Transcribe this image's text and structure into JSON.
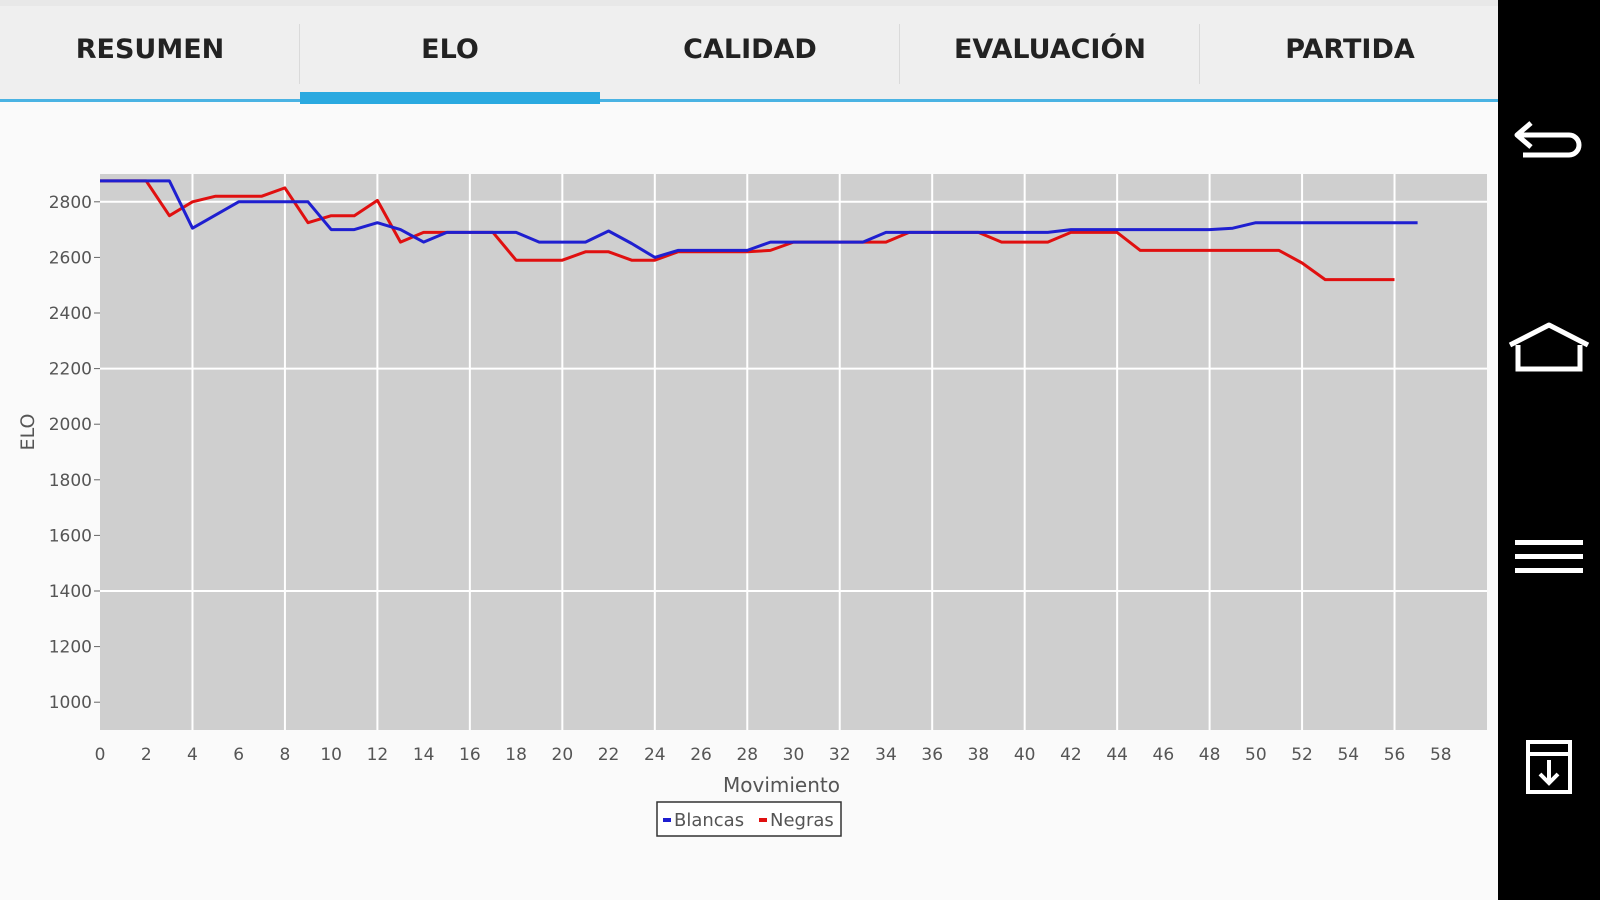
{
  "tabs": [
    {
      "label": "RESUMEN",
      "active": false
    },
    {
      "label": "ELO",
      "active": true
    },
    {
      "label": "CALIDAD",
      "active": false
    },
    {
      "label": "EVALUACIÓN",
      "active": false
    },
    {
      "label": "PARTIDA",
      "active": false
    }
  ],
  "navbar": {
    "icons": [
      "back-icon",
      "home-icon",
      "menu-icon",
      "download-icon"
    ]
  },
  "colors": {
    "accent": "#2aa9e0",
    "plot_bg": "#cfcfcf",
    "white_series": "#1f1fd0",
    "black_series": "#e01010"
  },
  "chart_data": {
    "type": "line",
    "xlabel": "Movimiento",
    "ylabel": "ELO",
    "xlim": [
      0,
      60
    ],
    "ylim": [
      900,
      2900
    ],
    "xticks": [
      0,
      2,
      4,
      6,
      8,
      10,
      12,
      14,
      16,
      18,
      20,
      22,
      24,
      26,
      28,
      30,
      32,
      34,
      36,
      38,
      40,
      42,
      44,
      46,
      48,
      50,
      52,
      54,
      56,
      58
    ],
    "yticks": [
      1000,
      1200,
      1400,
      1600,
      1800,
      2000,
      2200,
      2400,
      2600,
      2800
    ],
    "grid": true,
    "legend": "bottom-center",
    "series": [
      {
        "name": "Blancas",
        "color": "#1f1fd0",
        "points": [
          [
            0,
            2875
          ],
          [
            3,
            2875
          ],
          [
            4,
            2705
          ],
          [
            6,
            2800
          ],
          [
            9,
            2800
          ],
          [
            10,
            2700
          ],
          [
            11,
            2700
          ],
          [
            12,
            2725
          ],
          [
            13,
            2700
          ],
          [
            14,
            2655
          ],
          [
            15,
            2690
          ],
          [
            18,
            2690
          ],
          [
            19,
            2655
          ],
          [
            21,
            2655
          ],
          [
            22,
            2695
          ],
          [
            23,
            2650
          ],
          [
            24,
            2600
          ],
          [
            25,
            2625
          ],
          [
            28,
            2625
          ],
          [
            29,
            2655
          ],
          [
            33,
            2655
          ],
          [
            34,
            2690
          ],
          [
            36,
            2690
          ],
          [
            41,
            2690
          ],
          [
            42,
            2700
          ],
          [
            48,
            2700
          ],
          [
            49,
            2705
          ],
          [
            50,
            2725
          ],
          [
            57,
            2725
          ]
        ]
      },
      {
        "name": "Negras",
        "color": "#e01010",
        "points": [
          [
            0,
            2875
          ],
          [
            2,
            2875
          ],
          [
            3,
            2750
          ],
          [
            4,
            2800
          ],
          [
            5,
            2820
          ],
          [
            7,
            2820
          ],
          [
            8,
            2850
          ],
          [
            9,
            2725
          ],
          [
            10,
            2750
          ],
          [
            11,
            2750
          ],
          [
            12,
            2805
          ],
          [
            13,
            2655
          ],
          [
            14,
            2690
          ],
          [
            17,
            2690
          ],
          [
            18,
            2590
          ],
          [
            20,
            2590
          ],
          [
            21,
            2620
          ],
          [
            22,
            2620
          ],
          [
            23,
            2590
          ],
          [
            24,
            2590
          ],
          [
            25,
            2620
          ],
          [
            28,
            2620
          ],
          [
            29,
            2625
          ],
          [
            30,
            2655
          ],
          [
            32,
            2655
          ],
          [
            33,
            2655
          ],
          [
            34,
            2655
          ],
          [
            35,
            2690
          ],
          [
            38,
            2690
          ],
          [
            39,
            2655
          ],
          [
            41,
            2655
          ],
          [
            42,
            2690
          ],
          [
            44,
            2690
          ],
          [
            45,
            2625
          ],
          [
            51,
            2625
          ],
          [
            52,
            2580
          ],
          [
            53,
            2520
          ],
          [
            56,
            2520
          ]
        ]
      }
    ]
  }
}
